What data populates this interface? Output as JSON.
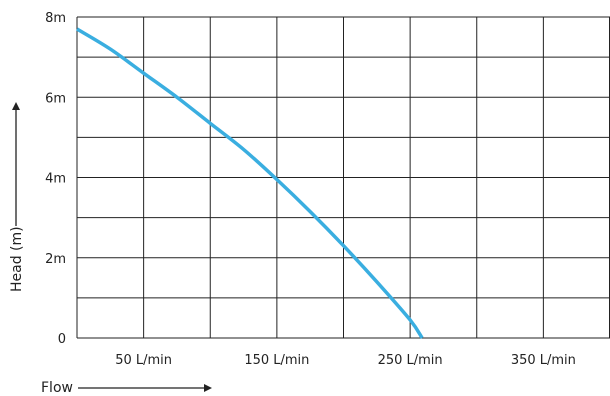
{
  "chart_data": {
    "type": "line",
    "title": "",
    "xlabel": "Flow",
    "ylabel": "Head (m)",
    "xlim": [
      0,
      400
    ],
    "ylim": [
      0,
      8
    ],
    "x_ticks": [
      50,
      150,
      250,
      350
    ],
    "x_tick_labels": [
      "50 L/min",
      "150 L/min",
      "250 L/min",
      "350 L/min"
    ],
    "y_ticks": [
      0,
      2,
      4,
      6,
      8
    ],
    "y_tick_labels": [
      "0",
      "2m",
      "4m",
      "6m",
      "8m"
    ],
    "grid": true,
    "series": [
      {
        "color": "#3aaee0",
        "x": [
          0,
          25,
          50,
          75,
          100,
          125,
          150,
          175,
          200,
          225,
          250,
          259
        ],
        "y": [
          7.7,
          7.2,
          6.6,
          6.0,
          5.35,
          4.7,
          3.95,
          3.15,
          2.3,
          1.4,
          0.45,
          0.0
        ]
      }
    ]
  }
}
